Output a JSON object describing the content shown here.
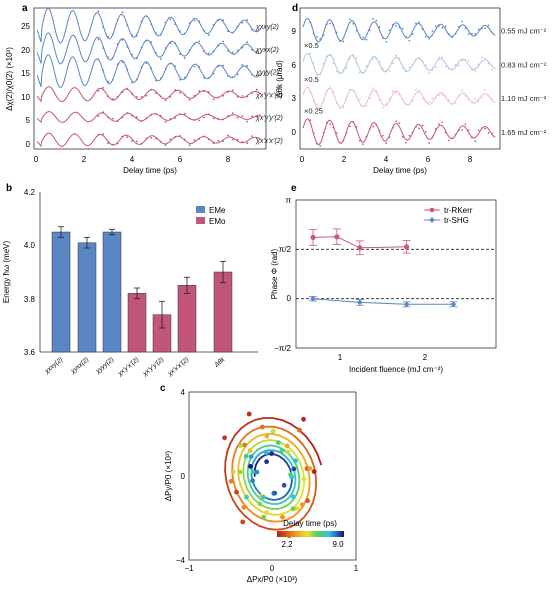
{
  "colors": {
    "blue": "#5b86c4",
    "pink": "#c2557b",
    "rkerr": "#c9577f",
    "shg": "#5b86c4"
  },
  "panels": {
    "a": {
      "letter": "a",
      "xlabel": "Delay time (ps)",
      "ylabel": "Δχ(2)/χ0(2) (×10³)",
      "xticks": [
        "0",
        "2",
        "4",
        "6",
        "8"
      ],
      "yticks": [
        "0",
        "5",
        "10",
        "15",
        "20",
        "25"
      ]
    },
    "b": {
      "letter": "b",
      "ylabel": "Energy ħω (meV)",
      "yticks": [
        "3.6",
        "3.8",
        "4.0",
        "4.2"
      ],
      "legend": [
        "EMe",
        "EMo"
      ]
    },
    "c": {
      "letter": "c",
      "xlabel": "ΔPx/P0 (×10³)",
      "ylabel": "ΔPy/P0 (×10³)",
      "xticks": [
        "−1",
        "0",
        "1"
      ],
      "yticks": [
        "−4",
        "0",
        "4"
      ],
      "colorbar_title": "Delay time (ps)",
      "colorbar_ticks": [
        "2.2",
        "9.0"
      ]
    },
    "d": {
      "letter": "d",
      "xlabel": "Delay time (ps)",
      "ylabel": "Δθk (μrad)",
      "xticks": [
        "0",
        "2",
        "4",
        "6",
        "8"
      ],
      "yticks": [
        "0",
        "3",
        "6",
        "9"
      ]
    },
    "e": {
      "letter": "e",
      "xlabel": "Incident fluence (mJ cm⁻²)",
      "ylabel": "Phase Φ (rad)",
      "xticks": [
        "1",
        "2"
      ],
      "yticks": [
        "π",
        "π/2",
        "0",
        "−π/2"
      ],
      "legend": [
        "tr-RKerr",
        "tr-SHG"
      ]
    }
  },
  "chart_data": [
    {
      "panel": "a",
      "type": "line",
      "xlabel": "Delay time (ps)",
      "ylabel": "Δχ(2)/χ0(2) (×10³)",
      "xlim": [
        0,
        9.5
      ],
      "ylim": [
        -2,
        29
      ],
      "damped_oscillation_fits": [
        {
          "name": "χxxy(2)",
          "offset": 25,
          "amplitude": 4.2,
          "frequency_THz": 0.98,
          "phase": 0.0,
          "decay_ps": 7.5,
          "color": "blue"
        },
        {
          "name": "χyxx(2)",
          "offset": 20,
          "amplitude": 3.8,
          "frequency_THz": 0.97,
          "phase": 0.0,
          "decay_ps": 7.0,
          "color": "blue"
        },
        {
          "name": "χyyy(2)",
          "offset": 15,
          "amplitude": 4.0,
          "frequency_THz": 0.98,
          "phase": 0.0,
          "decay_ps": 7.5,
          "color": "blue"
        },
        {
          "name": "χx'y'x'(2)",
          "offset": 10,
          "amplitude": 1.8,
          "frequency_THz": 0.93,
          "phase": 0.0,
          "decay_ps": 9.0,
          "color": "pink"
        },
        {
          "name": "χx'y'y'(2)",
          "offset": 5,
          "amplitude": 1.3,
          "frequency_THz": 0.91,
          "phase": 0.0,
          "decay_ps": 9.0,
          "color": "pink"
        },
        {
          "name": "χx'x'x'(2)",
          "offset": 0,
          "amplitude": 1.6,
          "frequency_THz": 0.93,
          "phase": 0.0,
          "decay_ps": 9.0,
          "color": "pink"
        }
      ]
    },
    {
      "panel": "b",
      "type": "bar",
      "ylabel": "Energy ħω (meV)",
      "ylim": [
        3.6,
        4.2
      ],
      "categories": [
        "χxxy(2)",
        "χyxx(2)",
        "χyyy(2)",
        "χx'y'x'(2)",
        "χx'y'y'(2)",
        "χx'x'x'(2)",
        "Δθk"
      ],
      "values": [
        4.05,
        4.01,
        4.05,
        3.82,
        3.74,
        3.85,
        3.9
      ],
      "errors": [
        0.02,
        0.02,
        0.01,
        0.02,
        0.05,
        0.03,
        0.04
      ],
      "bar_colors": [
        "blue",
        "blue",
        "blue",
        "pink",
        "pink",
        "pink",
        "pink"
      ],
      "legend": [
        {
          "name": "EMe",
          "color": "blue"
        },
        {
          "name": "EMo",
          "color": "pink"
        }
      ]
    },
    {
      "panel": "c",
      "type": "scatter",
      "xlabel": "ΔPx/P0 (×10³)",
      "ylabel": "ΔPy/P0 (×10³)",
      "xlim": [
        -1,
        1
      ],
      "ylim": [
        -4,
        4
      ],
      "colorbar": {
        "title": "Delay time (ps)",
        "min": 2.2,
        "max": 9.0
      },
      "spiral": {
        "t_start": 2.2,
        "t_end": 9.0,
        "frequency_THz": 0.95,
        "ax": 0.62,
        "ay": 3.0,
        "decay_ps": 6.5
      }
    },
    {
      "panel": "d",
      "type": "line",
      "xlabel": "Delay time (ps)",
      "ylabel": "Δθk (μrad)",
      "xlim": [
        0,
        9.5
      ],
      "ylim": [
        -1.5,
        11
      ],
      "series": [
        {
          "name": "0.55 mJ cm⁻²",
          "scale": "",
          "offset": 9,
          "amplitude": 1.1,
          "frequency_THz": 0.93,
          "decay_ps": 10,
          "color": "#5a84c2"
        },
        {
          "name": "0.83 mJ cm⁻²",
          "scale": "×0.5",
          "offset": 6,
          "amplitude": 1.0,
          "frequency_THz": 0.93,
          "decay_ps": 10,
          "color": "#aec5e4"
        },
        {
          "name": "1.10 mJ cm⁻²",
          "scale": "×0.5",
          "offset": 3,
          "amplitude": 1.0,
          "frequency_THz": 0.93,
          "decay_ps": 10,
          "color": "#efb9cb"
        },
        {
          "name": "1.65 mJ cm⁻²",
          "scale": "×0.25",
          "offset": 0,
          "amplitude": 1.2,
          "frequency_THz": 0.93,
          "decay_ps": 10,
          "color": "#c2557b"
        }
      ]
    },
    {
      "panel": "e",
      "type": "scatter",
      "xlabel": "Incident fluence (mJ cm⁻²)",
      "ylabel": "Phase Φ (rad)",
      "xlim": [
        0.35,
        2.7
      ],
      "ylim": [
        -1.5708,
        3.1416
      ],
      "hlines": [
        1.5708,
        0
      ],
      "series": [
        {
          "name": "tr-RKerr",
          "x": [
            0.55,
            0.83,
            1.1,
            1.65
          ],
          "y": [
            1.95,
            1.97,
            1.62,
            1.65
          ],
          "err": [
            0.25,
            0.25,
            0.22,
            0.2
          ],
          "color": "rkerr"
        },
        {
          "name": "tr-SHG",
          "x": [
            0.55,
            1.1,
            1.65,
            2.2
          ],
          "y": [
            0.0,
            -0.12,
            -0.18,
            -0.18
          ],
          "err": [
            0.07,
            0.09,
            0.08,
            0.08
          ],
          "color": "shg"
        }
      ]
    }
  ]
}
